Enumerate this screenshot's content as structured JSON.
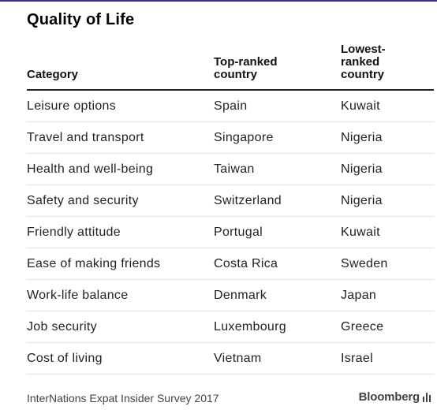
{
  "title": "Quality of Life",
  "columns": {
    "category": "Category",
    "top": [
      "Top-ranked",
      "country"
    ],
    "lowest": [
      "Lowest-",
      "ranked",
      "country"
    ]
  },
  "rows": [
    {
      "category": "Leisure options",
      "top": "Spain",
      "lowest": "Kuwait"
    },
    {
      "category": "Travel and transport",
      "top": "Singapore",
      "lowest": "Nigeria"
    },
    {
      "category": "Health and well-being",
      "top": "Taiwan",
      "lowest": "Nigeria"
    },
    {
      "category": "Safety and security",
      "top": "Switzerland",
      "lowest": "Nigeria"
    },
    {
      "category": "Friendly attitude",
      "top": "Portugal",
      "lowest": "Kuwait"
    },
    {
      "category": "Ease of making friends",
      "top": "Costa Rica",
      "lowest": "Sweden"
    },
    {
      "category": "Work-life balance",
      "top": "Denmark",
      "lowest": "Japan"
    },
    {
      "category": "Job security",
      "top": "Luxembourg",
      "lowest": "Greece"
    },
    {
      "category": "Cost of living",
      "top": "Vietnam",
      "lowest": "Israel"
    }
  ],
  "footer": {
    "source": "InterNations Expat Insider Survey 2017",
    "brand": "Bloomberg",
    "brand_icon": "bar-chart-icon"
  },
  "colors": {
    "top_rule": "#3a2d8f"
  }
}
